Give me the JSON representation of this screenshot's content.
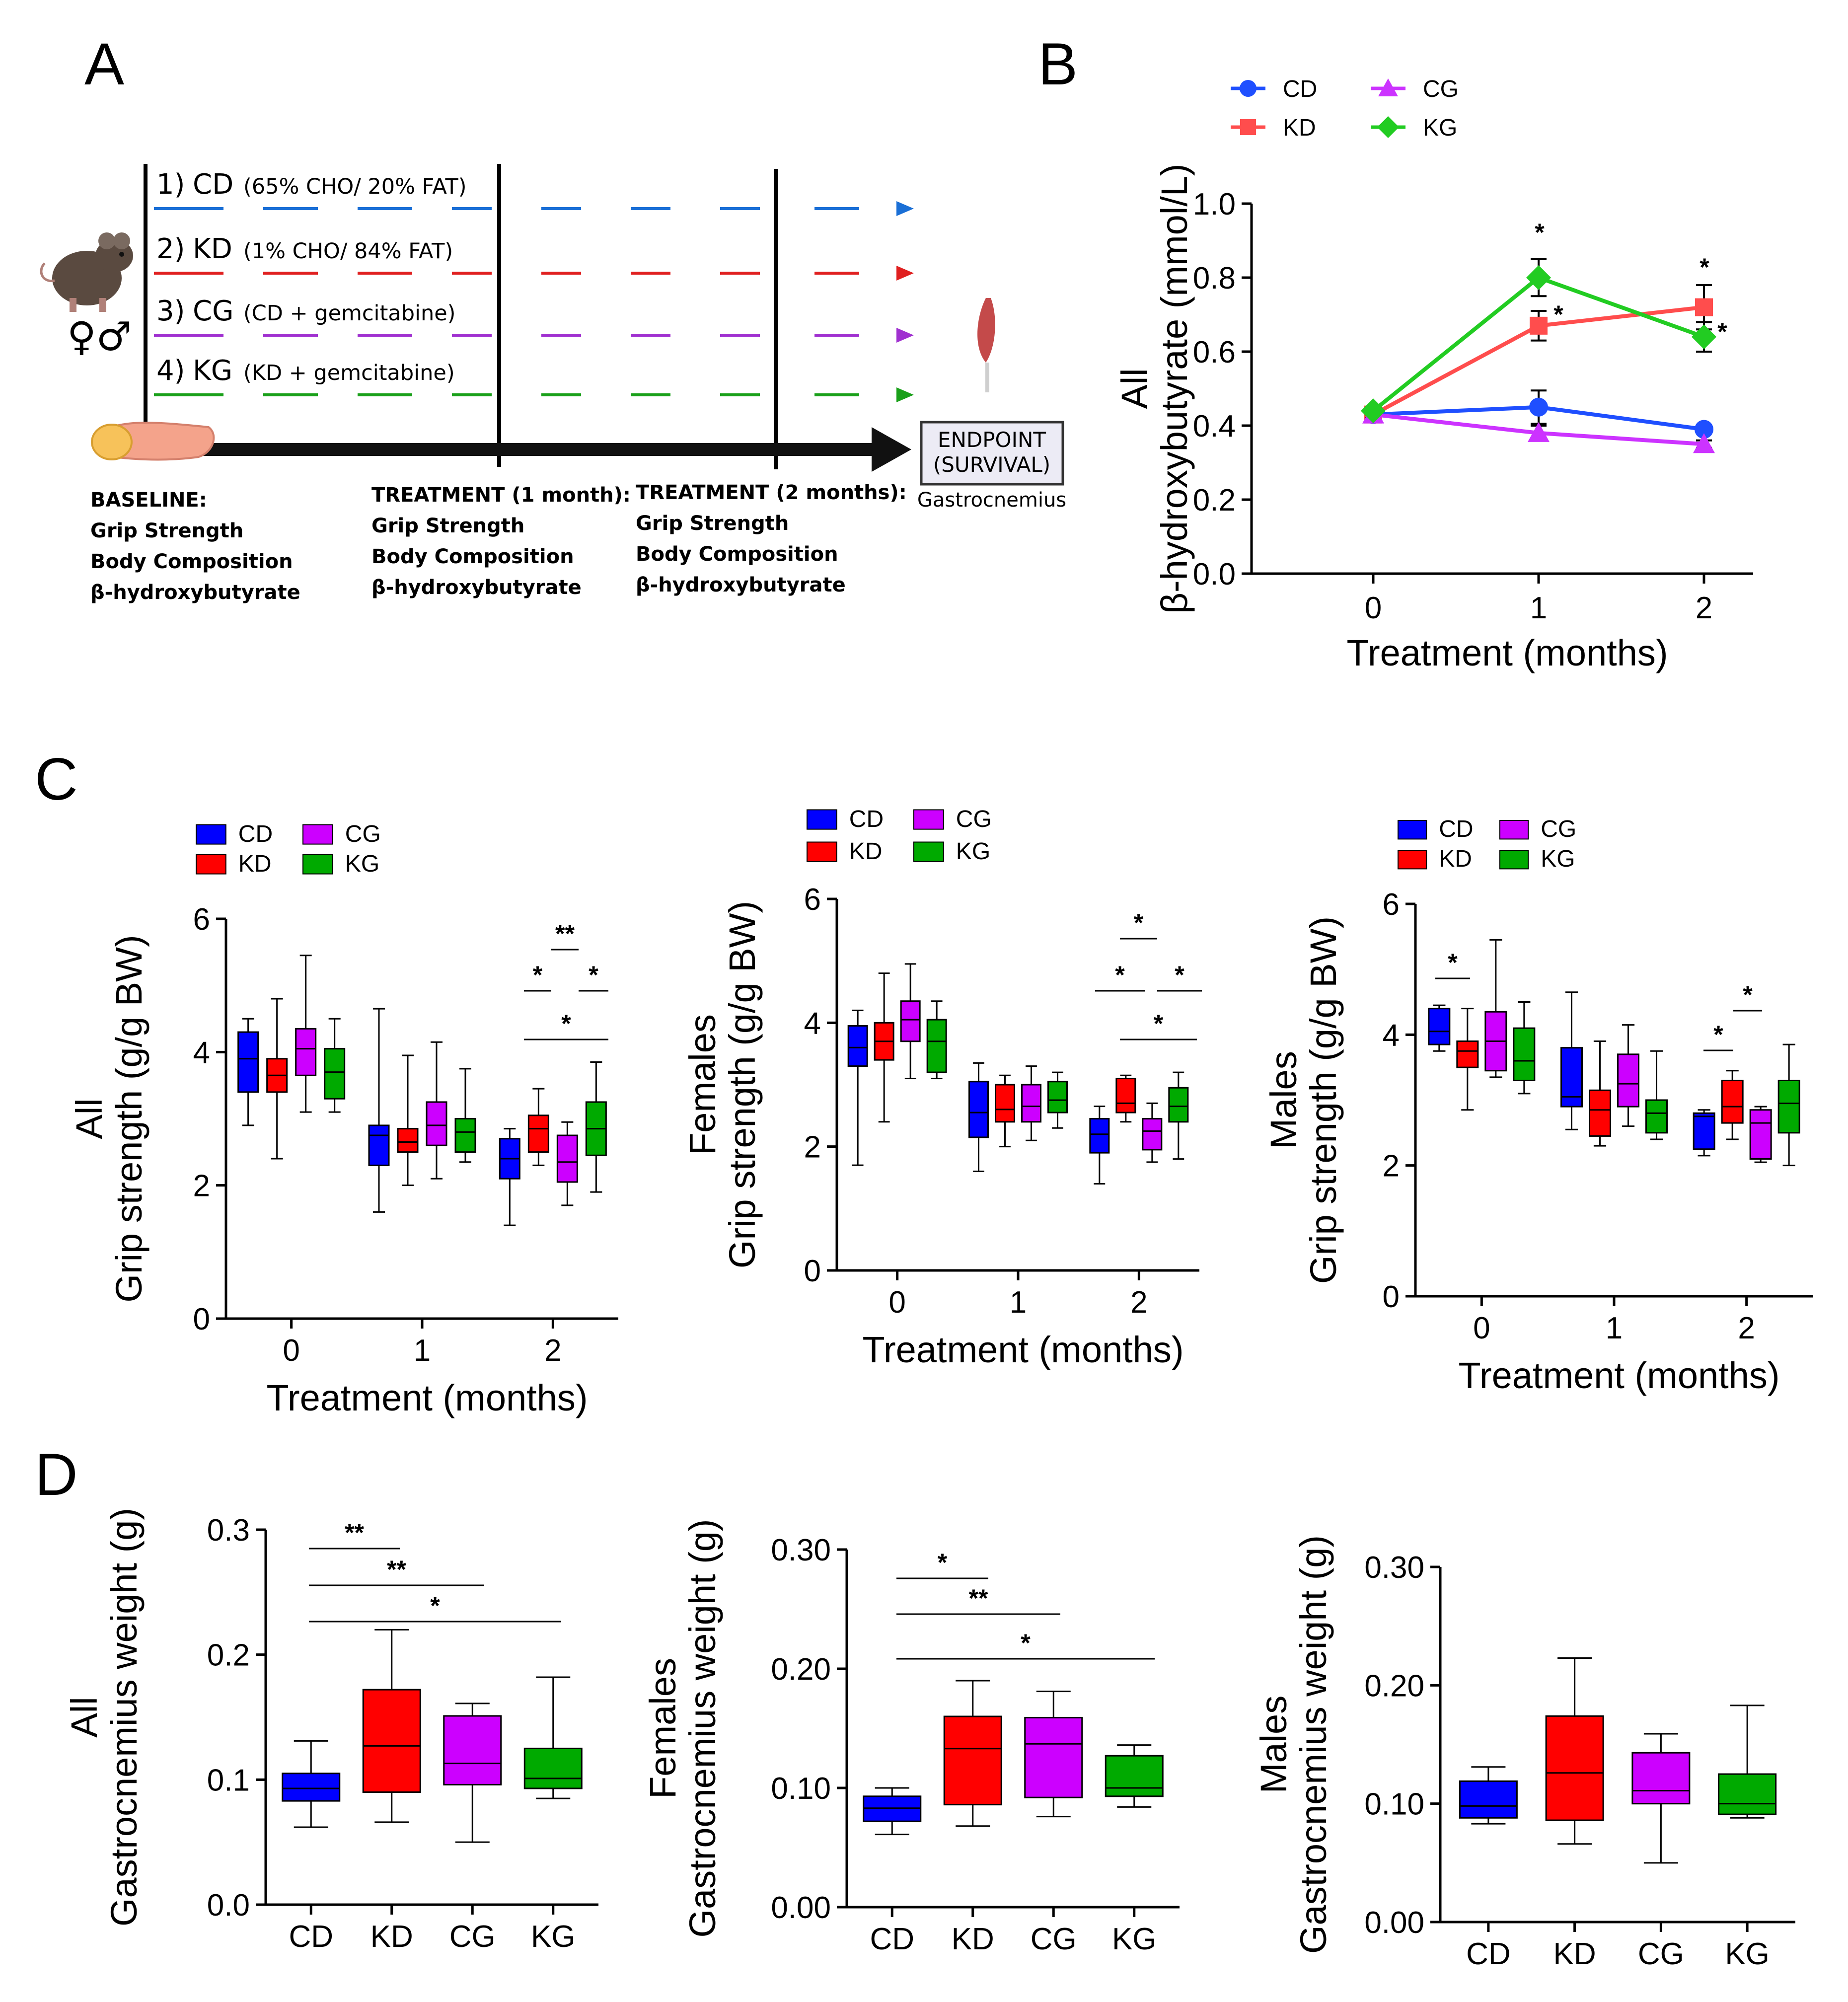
{
  "panels": {
    "A": "A",
    "B": "B",
    "C": "C",
    "D": "D"
  },
  "colors": {
    "CD": "#0000ff",
    "KD": "#ff0000",
    "CG": "#cc00ff",
    "KG": "#00aa00",
    "line_CD": "#1f4fff",
    "line_KD": "#ff4d4d",
    "line_CG": "#cc33ff",
    "line_KG": "#22cc22"
  },
  "diagram": {
    "groups": [
      {
        "num": "1)",
        "name": "CD",
        "detail": "(65% CHO/ 20% FAT)",
        "color": "#1a6fd6"
      },
      {
        "num": "2)",
        "name": "KD",
        "detail": "(1% CHO/ 84% FAT)",
        "color": "#e02020"
      },
      {
        "num": "3)",
        "name": "CG",
        "detail": "(CD + gemcitabine)",
        "color": "#a030d0"
      },
      {
        "num": "4)",
        "name": "KG",
        "detail": "(KD + gemcitabine)",
        "color": "#1aa01a"
      }
    ],
    "sex_symbols": "♀♂",
    "endpoint_line1": "ENDPOINT",
    "endpoint_line2": "(SURVIVAL)",
    "endpoint_sub": "Gastrocnemius",
    "timepoints": [
      {
        "title": "BASELINE:",
        "items": [
          "Grip Strength",
          "Body Composition",
          "β-hydroxybutyrate"
        ]
      },
      {
        "title": "TREATMENT (1 month):",
        "items": [
          "Grip Strength",
          "Body Composition",
          "β-hydroxybutyrate"
        ]
      },
      {
        "title": "TREATMENT (2 months):",
        "items": [
          "Grip Strength",
          "Body Composition",
          "β-hydroxybutyrate"
        ]
      }
    ]
  },
  "chart_data": [
    {
      "id": "B",
      "type": "line",
      "group_label": "All",
      "ylabel": "β-hydroxybutyrate (mmol/L)",
      "xlabel": "Treatment (months)",
      "x": [
        0,
        1,
        2
      ],
      "xticks": [
        "0",
        "1",
        "2"
      ],
      "ylim": [
        0,
        1.0
      ],
      "yticks": [
        "0.0",
        "0.2",
        "0.4",
        "0.6",
        "0.8",
        "1.0"
      ],
      "series": [
        {
          "name": "CD",
          "values": [
            0.43,
            0.45,
            0.39
          ],
          "err": [
            0.01,
            0.045,
            0.01
          ]
        },
        {
          "name": "KD",
          "values": [
            0.43,
            0.67,
            0.72
          ],
          "err": [
            0.01,
            0.04,
            0.06
          ]
        },
        {
          "name": "CG",
          "values": [
            0.43,
            0.38,
            0.35
          ],
          "err": [
            0.01,
            0.02,
            0.01
          ]
        },
        {
          "name": "KG",
          "values": [
            0.44,
            0.8,
            0.64
          ],
          "err": [
            0.01,
            0.05,
            0.04
          ]
        }
      ],
      "annotations": [
        "*",
        "*",
        "*",
        "*"
      ]
    },
    {
      "id": "C-all",
      "type": "boxplot",
      "group_label": "All",
      "ylabel": "Grip strength (g/g BW)",
      "xlabel": "Treatment (months)",
      "ylim": [
        0,
        6
      ],
      "yticks": [
        "0",
        "2",
        "4",
        "6"
      ],
      "categories": [
        "0",
        "1",
        "2"
      ],
      "series": [
        {
          "name": "CD",
          "boxes": [
            [
              2.9,
              3.4,
              3.9,
              4.3,
              4.5
            ],
            [
              1.6,
              2.3,
              2.75,
              2.9,
              4.65
            ],
            [
              1.4,
              2.1,
              2.4,
              2.7,
              2.85
            ]
          ]
        },
        {
          "name": "KD",
          "boxes": [
            [
              2.4,
              3.4,
              3.65,
              3.9,
              4.8
            ],
            [
              2.0,
              2.5,
              2.65,
              2.85,
              3.95
            ],
            [
              2.3,
              2.5,
              2.85,
              3.05,
              3.45
            ]
          ]
        },
        {
          "name": "CG",
          "boxes": [
            [
              3.1,
              3.65,
              4.05,
              4.35,
              5.45
            ],
            [
              2.1,
              2.6,
              2.9,
              3.25,
              4.15
            ],
            [
              1.7,
              2.05,
              2.35,
              2.75,
              2.95
            ]
          ]
        },
        {
          "name": "KG",
          "boxes": [
            [
              3.1,
              3.3,
              3.7,
              4.05,
              4.5
            ],
            [
              2.35,
              2.5,
              2.8,
              3.0,
              3.75
            ],
            [
              1.9,
              2.45,
              2.85,
              3.25,
              3.85
            ]
          ]
        }
      ],
      "significance": [
        "*",
        "**",
        "*",
        "*"
      ]
    },
    {
      "id": "C-females",
      "type": "boxplot",
      "group_label": "Females",
      "ylabel": "Grip strength (g/g BW)",
      "xlabel": "Treatment (months)",
      "ylim": [
        0,
        6
      ],
      "yticks": [
        "0",
        "2",
        "4",
        "6"
      ],
      "categories": [
        "0",
        "1",
        "2"
      ],
      "series": [
        {
          "name": "CD",
          "boxes": [
            [
              1.7,
              3.3,
              3.6,
              3.95,
              4.2
            ],
            [
              1.6,
              2.15,
              2.55,
              3.05,
              3.35
            ],
            [
              1.4,
              1.9,
              2.2,
              2.45,
              2.65
            ]
          ]
        },
        {
          "name": "KD",
          "boxes": [
            [
              2.4,
              3.4,
              3.7,
              4.0,
              4.8
            ],
            [
              2.0,
              2.4,
              2.6,
              3.0,
              3.15
            ],
            [
              2.4,
              2.55,
              2.7,
              3.1,
              3.15
            ]
          ]
        },
        {
          "name": "CG",
          "boxes": [
            [
              3.1,
              3.7,
              4.05,
              4.35,
              4.95
            ],
            [
              2.1,
              2.4,
              2.65,
              3.0,
              3.3
            ],
            [
              1.75,
              1.95,
              2.25,
              2.45,
              2.7
            ]
          ]
        },
        {
          "name": "KG",
          "boxes": [
            [
              3.1,
              3.2,
              3.7,
              4.05,
              4.35
            ],
            [
              2.3,
              2.55,
              2.75,
              3.05,
              3.2
            ],
            [
              1.8,
              2.4,
              2.65,
              2.95,
              3.2
            ]
          ]
        }
      ],
      "significance": [
        "*",
        "*",
        "*",
        "*"
      ]
    },
    {
      "id": "C-males",
      "type": "boxplot",
      "group_label": "Males",
      "ylabel": "Grip strength (g/g BW)",
      "xlabel": "Treatment (months)",
      "ylim": [
        0,
        6
      ],
      "yticks": [
        "0",
        "2",
        "4",
        "6"
      ],
      "categories": [
        "0",
        "1",
        "2"
      ],
      "series": [
        {
          "name": "CD",
          "boxes": [
            [
              3.75,
              3.85,
              4.05,
              4.4,
              4.45
            ],
            [
              2.55,
              2.9,
              3.05,
              3.8,
              4.65
            ],
            [
              2.15,
              2.25,
              2.75,
              2.8,
              2.85
            ]
          ]
        },
        {
          "name": "KD",
          "boxes": [
            [
              2.85,
              3.5,
              3.75,
              3.9,
              4.4
            ],
            [
              2.3,
              2.45,
              2.85,
              3.15,
              3.9
            ],
            [
              2.4,
              2.65,
              2.9,
              3.3,
              3.45
            ]
          ]
        },
        {
          "name": "CG",
          "boxes": [
            [
              3.35,
              3.45,
              3.9,
              4.35,
              5.45
            ],
            [
              2.6,
              2.9,
              3.25,
              3.7,
              4.15
            ],
            [
              2.05,
              2.1,
              2.65,
              2.85,
              2.9
            ]
          ]
        },
        {
          "name": "KG",
          "boxes": [
            [
              3.1,
              3.3,
              3.6,
              4.1,
              4.5
            ],
            [
              2.4,
              2.5,
              2.8,
              3.0,
              3.75
            ],
            [
              2.0,
              2.5,
              2.95,
              3.3,
              3.85
            ]
          ]
        }
      ],
      "significance": [
        "*",
        "*",
        "*"
      ]
    },
    {
      "id": "D-all",
      "type": "boxplot",
      "group_label": "All",
      "ylabel": "Gastrocnemius weight (g)",
      "xlabel": "",
      "ylim": [
        0,
        0.3
      ],
      "yticks": [
        "0.0",
        "0.1",
        "0.2",
        "0.3"
      ],
      "categories": [
        "CD",
        "KD",
        "CG",
        "KG"
      ],
      "series": [
        {
          "name": "CD",
          "boxes": [
            [
              0.062,
              0.083,
              0.093,
              0.105,
              0.131
            ]
          ]
        },
        {
          "name": "KD",
          "boxes": [
            [
              0.066,
              0.09,
              0.127,
              0.172,
              0.22
            ]
          ]
        },
        {
          "name": "CG",
          "boxes": [
            [
              0.05,
              0.096,
              0.113,
              0.151,
              0.161
            ]
          ]
        },
        {
          "name": "KG",
          "boxes": [
            [
              0.085,
              0.093,
              0.101,
              0.125,
              0.182
            ]
          ]
        }
      ],
      "significance": [
        "**",
        "**",
        "*"
      ]
    },
    {
      "id": "D-females",
      "type": "boxplot",
      "group_label": "Females",
      "ylabel": "Gastrocnemius weight (g)",
      "xlabel": "",
      "ylim": [
        0,
        0.3
      ],
      "yticks": [
        "0.00",
        "0.10",
        "0.20",
        "0.30"
      ],
      "categories": [
        "CD",
        "KD",
        "CG",
        "KG"
      ],
      "series": [
        {
          "name": "CD",
          "boxes": [
            [
              0.061,
              0.072,
              0.083,
              0.093,
              0.1
            ]
          ]
        },
        {
          "name": "KD",
          "boxes": [
            [
              0.068,
              0.086,
              0.133,
              0.16,
              0.19
            ]
          ]
        },
        {
          "name": "CG",
          "boxes": [
            [
              0.076,
              0.092,
              0.137,
              0.159,
              0.181
            ]
          ]
        },
        {
          "name": "KG",
          "boxes": [
            [
              0.084,
              0.093,
              0.1,
              0.127,
              0.136
            ]
          ]
        }
      ],
      "significance": [
        "*",
        "**",
        "*"
      ]
    },
    {
      "id": "D-males",
      "type": "boxplot",
      "group_label": "Males",
      "ylabel": "Gastrocnemius weight (g)",
      "xlabel": "",
      "ylim": [
        0,
        0.3
      ],
      "yticks": [
        "0.00",
        "0.10",
        "0.20",
        "0.30"
      ],
      "categories": [
        "CD",
        "KD",
        "CG",
        "KG"
      ],
      "series": [
        {
          "name": "CD",
          "boxes": [
            [
              0.083,
              0.088,
              0.098,
              0.119,
              0.131
            ]
          ]
        },
        {
          "name": "KD",
          "boxes": [
            [
              0.066,
              0.086,
              0.126,
              0.174,
              0.223
            ]
          ]
        },
        {
          "name": "CG",
          "boxes": [
            [
              0.05,
              0.1,
              0.111,
              0.143,
              0.159
            ]
          ]
        },
        {
          "name": "KG",
          "boxes": [
            [
              0.088,
              0.091,
              0.1,
              0.125,
              0.183
            ]
          ]
        }
      ],
      "significance": []
    }
  ]
}
